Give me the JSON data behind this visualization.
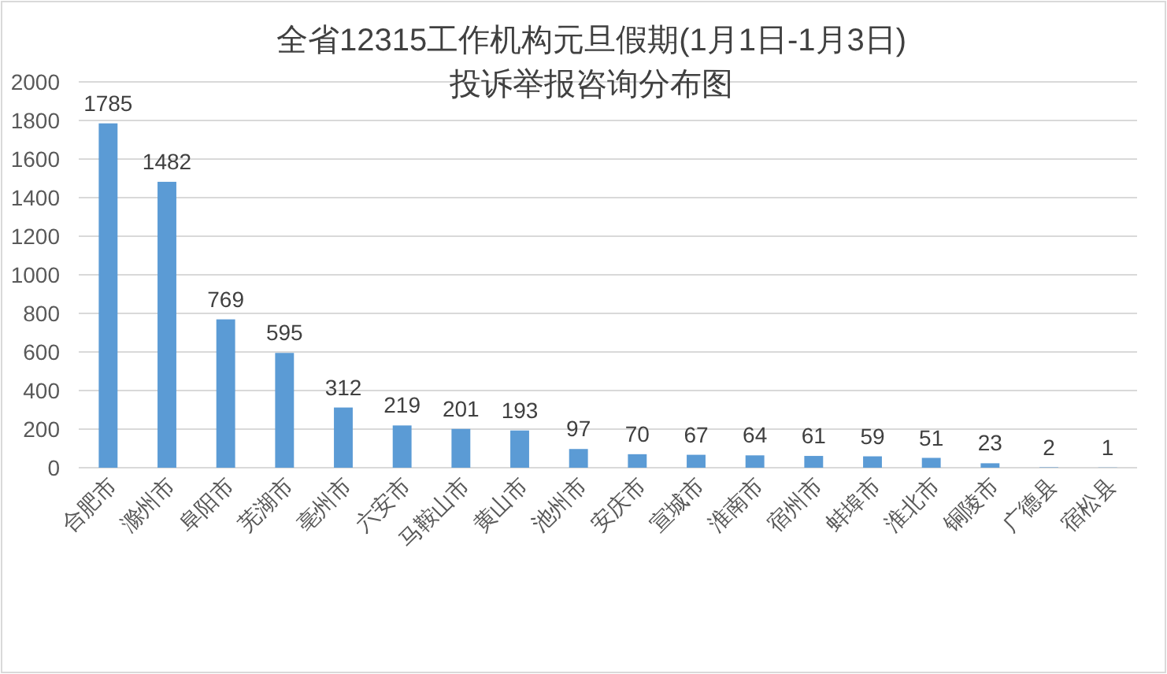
{
  "chart_data": {
    "type": "bar",
    "title": "全省12315工作机构元旦假期(1月1日-1月3日)\n投诉举报咨询分布图",
    "categories": [
      "合肥市",
      "滁州市",
      "阜阳市",
      "芜湖市",
      "亳州市",
      "六安市",
      "马鞍山市",
      "黄山市",
      "池州市",
      "安庆市",
      "宣城市",
      "淮南市",
      "宿州市",
      "蚌埠市",
      "淮北市",
      "铜陵市",
      "广德县",
      "宿松县"
    ],
    "values": [
      1785,
      1482,
      769,
      595,
      312,
      219,
      201,
      193,
      97,
      70,
      67,
      64,
      61,
      59,
      51,
      23,
      2,
      1
    ],
    "color": "#5b9bd5",
    "ylim": [
      0,
      2000
    ],
    "yticks": [
      0,
      200,
      400,
      600,
      800,
      1000,
      1200,
      1400,
      1600,
      1800,
      2000
    ],
    "grid": "y",
    "data_labels": true
  }
}
